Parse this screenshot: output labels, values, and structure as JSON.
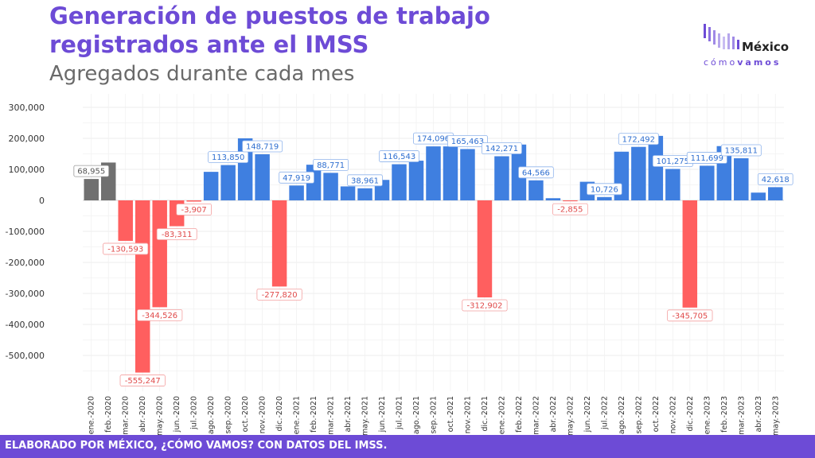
{
  "header": {
    "title_line1": "Generación de puestos de trabajo",
    "title_line2": "registrados ante el IMSS",
    "subtitle": "Agregados durante cada mes"
  },
  "logo": {
    "word": "México",
    "sub_a": "cómo",
    "sub_b": "vamos"
  },
  "footer": {
    "text": "ELABORADO POR MÉXICO, ¿CÓMO VAMOS? CON DATOS DEL IMSS."
  },
  "colors": {
    "positive": "#3f7fe0",
    "negative": "#ff5f5f",
    "neutral": "#707070",
    "brand": "#6d4bd6"
  },
  "chart_data": {
    "type": "bar",
    "title": "Generación de puestos de trabajo registrados ante el IMSS",
    "subtitle": "Agregados durante cada mes",
    "xlabel": "",
    "ylabel": "",
    "ylim": [
      -600000,
      320000
    ],
    "yticks": [
      300000,
      200000,
      100000,
      0,
      -100000,
      -200000,
      -300000,
      -400000,
      -500000
    ],
    "ytick_labels": [
      "300,000",
      "200,000",
      "100,000",
      "0",
      "-100,000",
      "-200,000",
      "-300,000",
      "-400,000",
      "-500,000"
    ],
    "grid": true,
    "categories": [
      "ene.-2020",
      "feb.-2020",
      "mar.-2020",
      "abr.-2020",
      "may.-2020",
      "jun.-2020",
      "jul.-2020",
      "ago.-2020",
      "sep.-2020",
      "oct.-2020",
      "nov.-2020",
      "dic.-2020",
      "ene.-2021",
      "feb.-2021",
      "mar.-2021",
      "abr.-2021",
      "may.-2021",
      "jun.-2021",
      "jul.-2021",
      "ago.-2021",
      "sep.-2021",
      "oct.-2021",
      "nov.-2021",
      "dic.-2021",
      "ene.-2022",
      "feb.-2022",
      "mar.-2022",
      "abr.-2022",
      "may.-2022",
      "jun.-2022",
      "jul.-2022",
      "ago.-2022",
      "sep.-2022",
      "oct.-2022",
      "nov.-2022",
      "dic.-2022",
      "ene.-2023",
      "feb.-2023",
      "mar.-2023",
      "abr.-2023",
      "may.-2023"
    ],
    "values": [
      68955,
      122000,
      -130593,
      -555247,
      -344526,
      -83311,
      -3907,
      92000,
      113850,
      200000,
      148719,
      -277820,
      47919,
      115000,
      88771,
      45000,
      38961,
      66000,
      116543,
      128000,
      174096,
      174000,
      165463,
      -312902,
      142271,
      180000,
      64566,
      7000,
      -2855,
      60000,
      10726,
      157000,
      172492,
      208000,
      101275,
      -345705,
      111699,
      175000,
      135811,
      25000,
      42618
    ],
    "bar_colors": [
      "neutral",
      "neutral",
      "negative",
      "negative",
      "negative",
      "negative",
      "negative",
      "positive",
      "positive",
      "positive",
      "positive",
      "negative",
      "positive",
      "positive",
      "positive",
      "positive",
      "positive",
      "positive",
      "positive",
      "positive",
      "positive",
      "positive",
      "positive",
      "negative",
      "positive",
      "positive",
      "positive",
      "positive",
      "negative",
      "positive",
      "positive",
      "positive",
      "positive",
      "positive",
      "positive",
      "negative",
      "positive",
      "positive",
      "positive",
      "positive",
      "positive"
    ],
    "data_labels": {
      "0": "68,955",
      "2": "-130,593",
      "3": "-555,247",
      "4": "-344,526",
      "5": "-83,311",
      "6": "-3,907",
      "8": "113,850",
      "10": "148,719",
      "11": "-277,820",
      "12": "47,919",
      "14": "88,771",
      "16": "38,961",
      "18": "116,543",
      "20": "174,096",
      "22": "165,463",
      "23": "-312,902",
      "24": "142,271",
      "26": "64,566",
      "28": "-2,855",
      "30": "10,726",
      "32": "172,492",
      "34": "101,275",
      "35": "-345,705",
      "36": "111,699",
      "38": "135,811",
      "40": "42,618"
    }
  }
}
